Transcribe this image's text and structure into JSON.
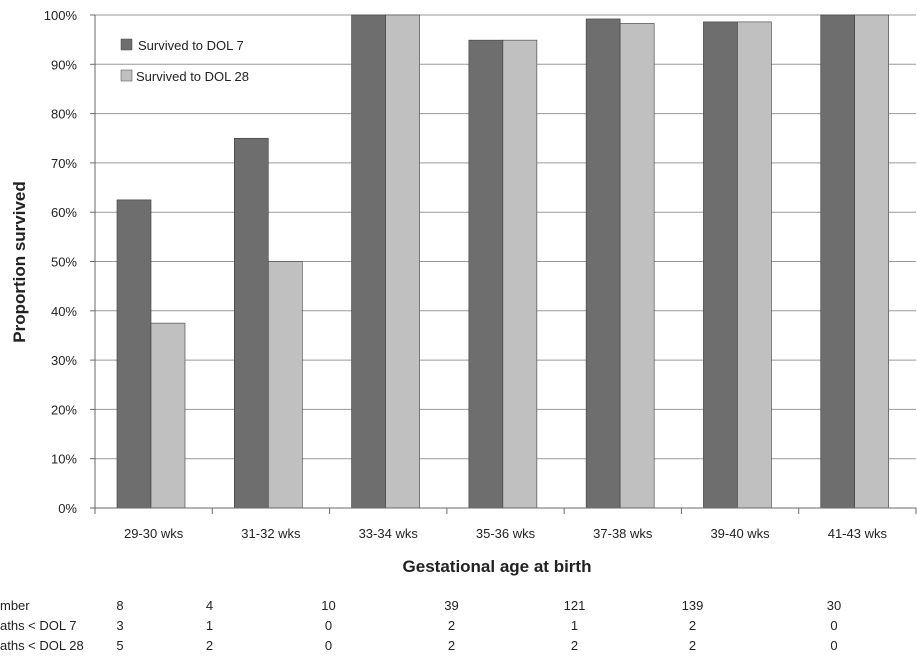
{
  "chart_data": {
    "type": "bar",
    "xlabel": "Gestational age at birth",
    "ylabel": "Proportion survived",
    "ylim": [
      0,
      100
    ],
    "y_unit": "%",
    "yticks": [
      "0%",
      "10%",
      "20%",
      "30%",
      "40%",
      "50%",
      "60%",
      "70%",
      "80%",
      "90%",
      "100%"
    ],
    "grid": true,
    "legend_position": "top-left",
    "categories": [
      "29-30 wks",
      "31-32 wks",
      "33-34 wks",
      "35-36 wks",
      "37-38 wks",
      "39-40 wks",
      "41-43 wks"
    ],
    "series": [
      {
        "name": "Survived to DOL 7",
        "color": "#6e6e6e",
        "values": [
          62.5,
          75,
          100,
          94.9,
          99.2,
          98.6,
          100
        ]
      },
      {
        "name": "Survived to DOL 28",
        "color": "#c0c0c0",
        "values": [
          37.5,
          50,
          100,
          94.9,
          98.3,
          98.6,
          100
        ]
      }
    ]
  },
  "table": {
    "rows": [
      {
        "label": "mber",
        "values": [
          "8",
          "4",
          "10",
          "39",
          "121",
          "139",
          "30"
        ]
      },
      {
        "label": "aths < DOL 7",
        "values": [
          "3",
          "1",
          "0",
          "2",
          "1",
          "2",
          "0"
        ]
      },
      {
        "label": "aths < DOL 28",
        "values": [
          "5",
          "2",
          "0",
          "2",
          "2",
          "2",
          "0"
        ]
      }
    ]
  }
}
